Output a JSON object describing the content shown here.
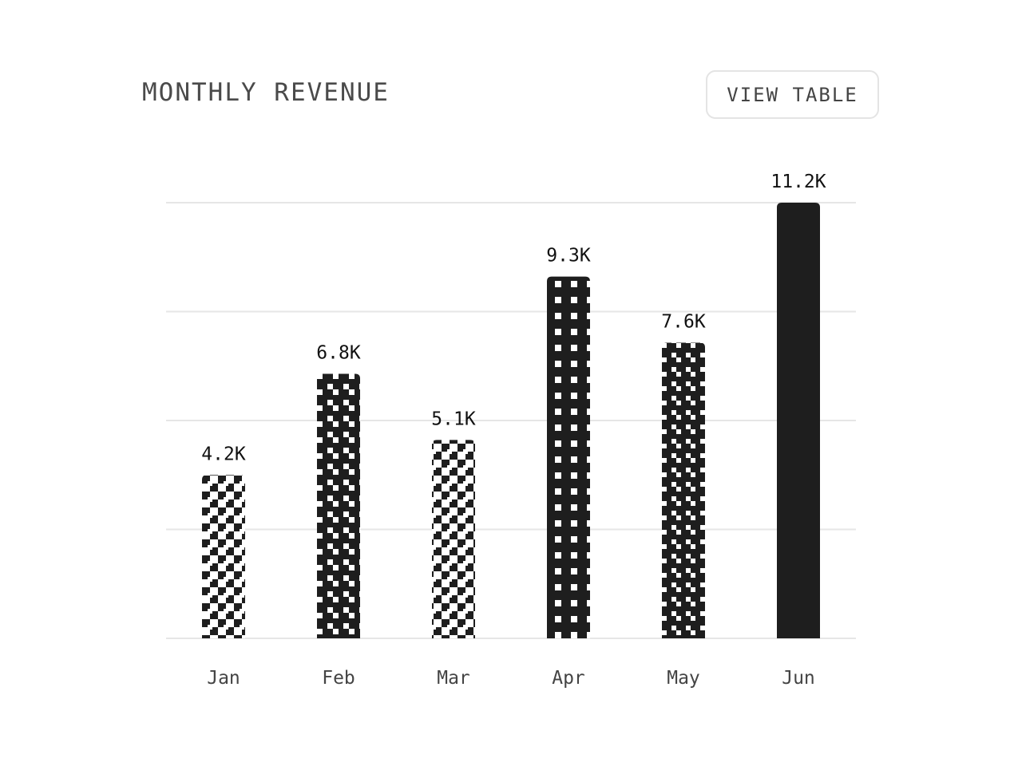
{
  "header": {
    "title": "MONTHLY REVENUE",
    "view_table_label": "VIEW TABLE"
  },
  "colors": {
    "bar": "#1e1e1e",
    "grid": "#e6e6e6",
    "background": "#ffffff"
  },
  "chart_data": {
    "type": "bar",
    "categories": [
      "Jan",
      "Feb",
      "Mar",
      "Apr",
      "May",
      "Jun"
    ],
    "values": [
      4.2,
      6.8,
      5.1,
      9.3,
      7.6,
      11.2
    ],
    "value_labels": [
      "4.2K",
      "6.8K",
      "5.1K",
      "9.3K",
      "7.6K",
      "11.2K"
    ],
    "title": "MONTHLY REVENUE",
    "xlabel": "",
    "ylabel": "",
    "ylim": [
      0,
      11.2
    ],
    "grid": true,
    "legend": "none",
    "bar_fill_styles": [
      "checker-sparse",
      "checker-dense",
      "checker-sparse",
      "dots",
      "cross",
      "solid"
    ]
  }
}
